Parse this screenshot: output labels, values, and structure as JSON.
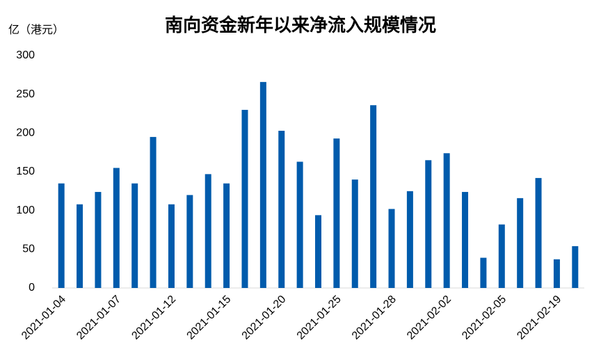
{
  "chart_data": {
    "type": "bar",
    "title": "南向资金新年以来净流入规模情况",
    "y_label": "亿（港元）",
    "categories": [
      "2021-01-04",
      null,
      null,
      "2021-01-07",
      null,
      null,
      "2021-01-12",
      null,
      null,
      "2021-01-15",
      null,
      null,
      "2021-01-20",
      null,
      null,
      "2021-01-25",
      null,
      null,
      "2021-01-28",
      null,
      null,
      "2021-02-02",
      null,
      null,
      "2021-02-05",
      null,
      null,
      "2021-02-19",
      null
    ],
    "values": [
      135,
      108,
      124,
      155,
      135,
      195,
      108,
      120,
      147,
      135,
      230,
      266,
      203,
      163,
      94,
      193,
      140,
      236,
      102,
      125,
      165,
      174,
      124,
      39,
      82,
      116,
      142,
      37,
      54
    ],
    "color": "#005bac",
    "ylim": [
      0,
      300
    ],
    "yticks": [
      0,
      50,
      100,
      150,
      200,
      250,
      300
    ],
    "grid": false
  }
}
